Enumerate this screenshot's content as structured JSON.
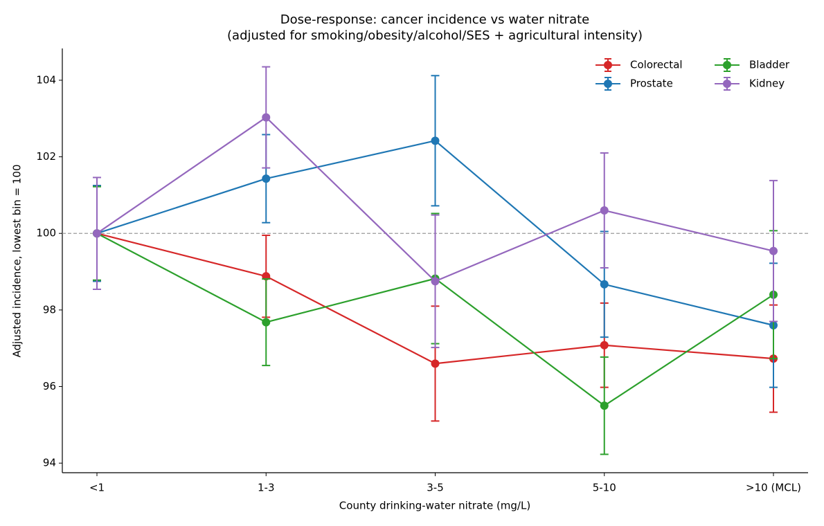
{
  "chart_data": {
    "type": "errorbar-line",
    "title": [
      "Dose-response: cancer incidence vs water nitrate",
      "(adjusted for smoking/obesity/alcohol/SES + agricultural intensity)"
    ],
    "x_label": "County drinking-water nitrate (mg/L)",
    "y_label": "Adjusted incidence, lowest bin = 100",
    "categories": [
      "<1",
      "1-3",
      "3-5",
      "5-10",
      ">10 (MCL)"
    ],
    "series": [
      {
        "name": "Colorectal",
        "color": "#d62728",
        "values": [
          100,
          98.88,
          96.6,
          97.08,
          96.73
        ],
        "errors": [
          1.25,
          1.07,
          1.5,
          1.1,
          1.4
        ]
      },
      {
        "name": "Prostate",
        "color": "#1f77b4",
        "values": [
          100,
          101.43,
          102.42,
          98.67,
          97.6
        ],
        "errors": [
          1.25,
          1.15,
          1.7,
          1.38,
          1.62
        ]
      },
      {
        "name": "Bladder",
        "color": "#2ca02c",
        "values": [
          100,
          97.68,
          98.82,
          95.5,
          98.4
        ],
        "errors": [
          1.22,
          1.13,
          1.7,
          1.27,
          1.67
        ]
      },
      {
        "name": "Kidney",
        "color": "#9467bd",
        "values": [
          100,
          103.03,
          98.75,
          100.6,
          99.54
        ],
        "errors": [
          1.46,
          1.32,
          1.73,
          1.5,
          1.84
        ]
      }
    ],
    "reference_line": 100,
    "ylim": [
      93.75,
      104.83
    ],
    "yticks": [
      94,
      96,
      98,
      100,
      102,
      104
    ],
    "legend": "upper right"
  }
}
